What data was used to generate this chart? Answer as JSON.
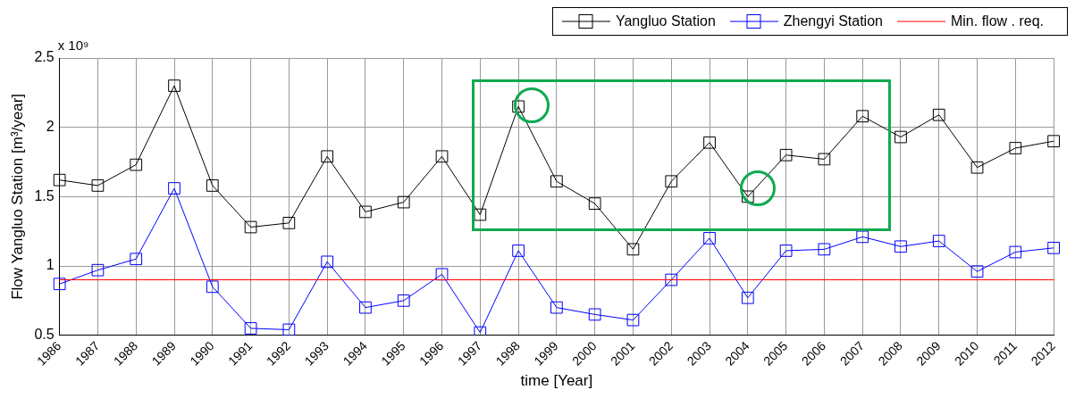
{
  "chart_data": {
    "type": "line",
    "xlabel": "time [Year]",
    "ylabel": "Flow Yangluo Station [m³/year]",
    "annotations": [
      "x 10⁹"
    ],
    "categories": [
      "1986",
      "1987",
      "1988",
      "1989",
      "1990",
      "1991",
      "1992",
      "1993",
      "1994",
      "1995",
      "1996",
      "1997",
      "1998",
      "1999",
      "2000",
      "2001",
      "2002",
      "2003",
      "2004",
      "2005",
      "2006",
      "2007",
      "2008",
      "2009",
      "2010",
      "2011",
      "2012"
    ],
    "series": [
      {
        "name": "Yangluo Station",
        "color": "#000000",
        "values": [
          1.62,
          1.58,
          1.73,
          2.3,
          1.58,
          1.28,
          1.31,
          1.79,
          1.39,
          1.46,
          1.79,
          1.37,
          2.15,
          1.61,
          1.45,
          1.12,
          1.61,
          1.89,
          1.5,
          1.8,
          1.77,
          2.08,
          1.93,
          2.09,
          1.71,
          1.85,
          1.9
        ]
      },
      {
        "name": "Zhengyi Station",
        "color": "#0000ff",
        "values": [
          0.87,
          0.97,
          1.05,
          1.56,
          0.85,
          0.55,
          0.54,
          1.03,
          0.7,
          0.75,
          0.94,
          0.52,
          1.11,
          0.7,
          0.65,
          0.61,
          0.9,
          1.2,
          0.77,
          1.11,
          1.12,
          1.21,
          1.14,
          1.18,
          0.96,
          1.1,
          1.13
        ]
      }
    ],
    "ref_lines": [
      {
        "axis": "y",
        "value": 0.9,
        "label": "Min. flow . req.",
        "color": "#ff0000"
      }
    ],
    "ylim": [
      0.5,
      2.5
    ],
    "yticks": [
      0.5,
      1,
      1.5,
      2,
      2.5
    ],
    "grid": true,
    "legend": "top right",
    "marker": "square",
    "line_style": "solid"
  }
}
